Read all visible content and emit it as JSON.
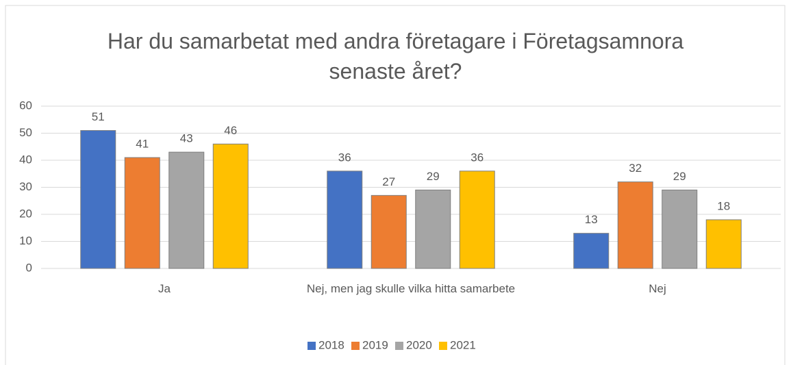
{
  "chart_data": {
    "type": "bar",
    "title": "Har du samarbetat med andra företagare i Företagsamnora senaste året?",
    "categories": [
      "Ja",
      "Nej, men jag skulle vilka hitta samarbete",
      "Nej"
    ],
    "series": [
      {
        "name": "2018",
        "color": "#4472c4",
        "values": [
          51,
          36,
          13
        ]
      },
      {
        "name": "2019",
        "color": "#ed7d31",
        "values": [
          41,
          27,
          32
        ]
      },
      {
        "name": "2020",
        "color": "#a5a5a5",
        "values": [
          43,
          29,
          29
        ]
      },
      {
        "name": "2021",
        "color": "#ffc000",
        "values": [
          46,
          36,
          18
        ]
      }
    ],
    "ylim": [
      0,
      60
    ],
    "yticks": [
      0,
      10,
      20,
      30,
      40,
      50,
      60
    ],
    "grid": true,
    "legend": "bottom"
  }
}
